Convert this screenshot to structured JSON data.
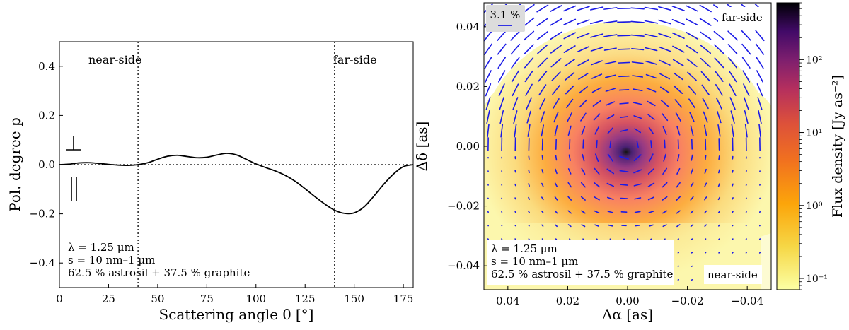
{
  "chart_data": [
    {
      "type": "line",
      "xlabel": "Scattering angle θ [°]",
      "ylabel": "Pol. degree p",
      "xlim": [
        0,
        180
      ],
      "ylim": [
        -0.5,
        0.5
      ],
      "xticks": [
        "0",
        "25",
        "50",
        "75",
        "100",
        "125",
        "150",
        "175"
      ],
      "yticks": [
        "−0.4",
        "−0.2",
        "0.0",
        "0.2",
        "0.4"
      ],
      "grid": false,
      "annotations": {
        "near_side": "near-side",
        "far_side": "far-side",
        "perp_symbol": "⊥",
        "parallel_symbol": "||",
        "info_line1": "λ = 1.25 μm",
        "info_line2": "s = 10 nm–1 μm",
        "info_line3": "62.5 % astrosil + 37.5 % graphite"
      },
      "vlines_x": [
        40,
        140
      ],
      "hline_y": 0,
      "series": [
        {
          "x": [
            0,
            5,
            10,
            15,
            20,
            25,
            30,
            35,
            40,
            45,
            50,
            55,
            60,
            65,
            70,
            75,
            80,
            85,
            90,
            95,
            100,
            105,
            110,
            115,
            120,
            125,
            130,
            135,
            140,
            145,
            150,
            155,
            160,
            165,
            170,
            175,
            180
          ],
          "values": [
            0.0,
            0.002,
            0.007,
            0.008,
            0.005,
            0.001,
            -0.002,
            -0.003,
            0.0,
            0.008,
            0.022,
            0.034,
            0.038,
            0.033,
            0.028,
            0.03,
            0.039,
            0.046,
            0.04,
            0.022,
            0.003,
            -0.012,
            -0.026,
            -0.044,
            -0.068,
            -0.098,
            -0.13,
            -0.16,
            -0.185,
            -0.198,
            -0.196,
            -0.172,
            -0.128,
            -0.08,
            -0.038,
            -0.008,
            0.0
          ]
        }
      ]
    },
    {
      "type": "heatmap",
      "xlabel": "Δα [as]",
      "ylabel": "Δδ [as]",
      "xlim": [
        0.048,
        -0.048
      ],
      "ylim": [
        -0.048,
        0.048
      ],
      "xticks": [
        "0.04",
        "0.02",
        "0.00",
        "−0.02",
        "−0.04"
      ],
      "yticks": [
        "−0.04",
        "−0.02",
        "0.00",
        "0.02",
        "0.04"
      ],
      "colorbar": {
        "label": "Flux density [Jy as⁻²]",
        "scale": "log",
        "range": [
          0.07,
          600
        ],
        "ticks": [
          "10⁻¹",
          "10⁰",
          "10¹",
          "10²"
        ],
        "colormap": "inferno"
      },
      "vector_scale_label": "3.1 %",
      "vector_color": "#1a1ae6",
      "annotations": {
        "far_side": "far-side",
        "near_side": "near-side",
        "info_line1": "λ = 1.25 μm",
        "info_line2": "s = 10 nm–1 μm",
        "info_line3": "62.5 % astrosil + 37.5 % graphite"
      }
    }
  ]
}
